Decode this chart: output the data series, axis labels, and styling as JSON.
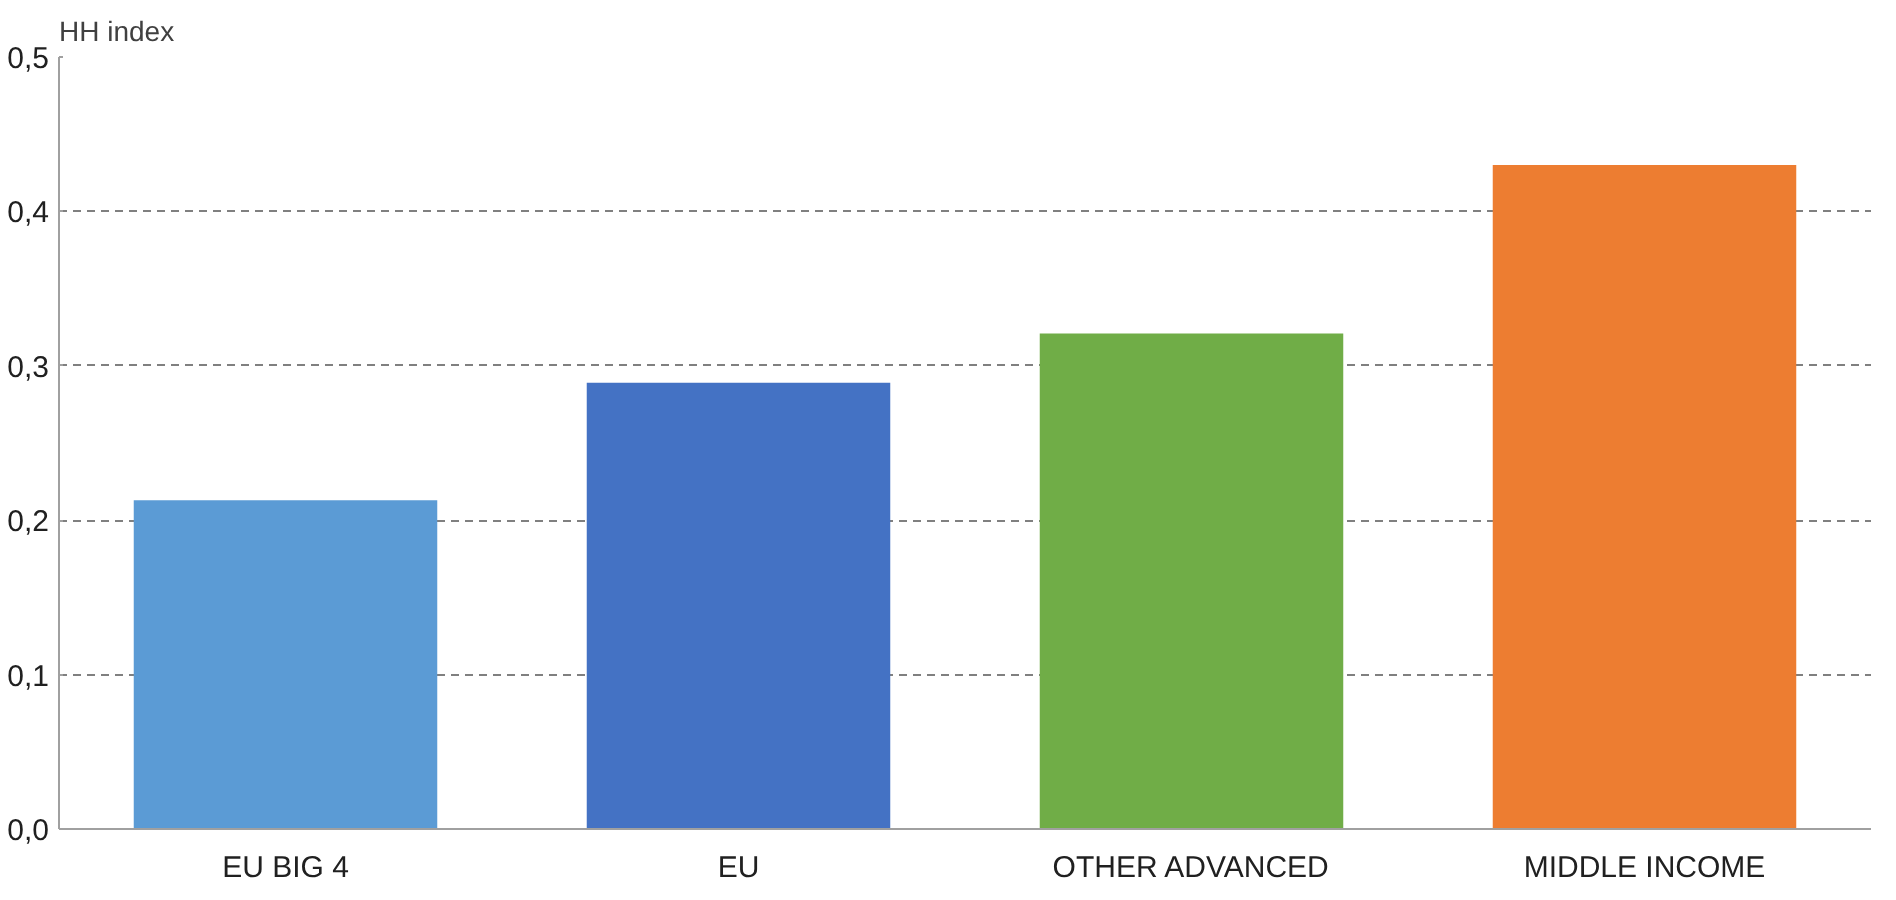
{
  "chart_data": {
    "type": "bar",
    "ylabel": "HH index",
    "categories": [
      "EU BIG 4",
      "EU",
      "OTHER ADVANCED",
      "MIDDLE INCOME"
    ],
    "values": [
      0.213,
      0.289,
      0.321,
      0.43
    ],
    "colors": [
      "#5b9bd5",
      "#4472c4",
      "#70ad47",
      "#ed7d31"
    ],
    "ylim": [
      0,
      0.5
    ],
    "yticks": [
      {
        "value": 0,
        "label": "0,0"
      },
      {
        "value": 0.1,
        "label": "0,1"
      },
      {
        "value": 0.2,
        "label": "0,2"
      },
      {
        "value": 0.3,
        "label": "0,3"
      },
      {
        "value": 0.4,
        "label": "0,4"
      },
      {
        "value": 0.5,
        "label": "0,5"
      }
    ],
    "grid": "y"
  }
}
